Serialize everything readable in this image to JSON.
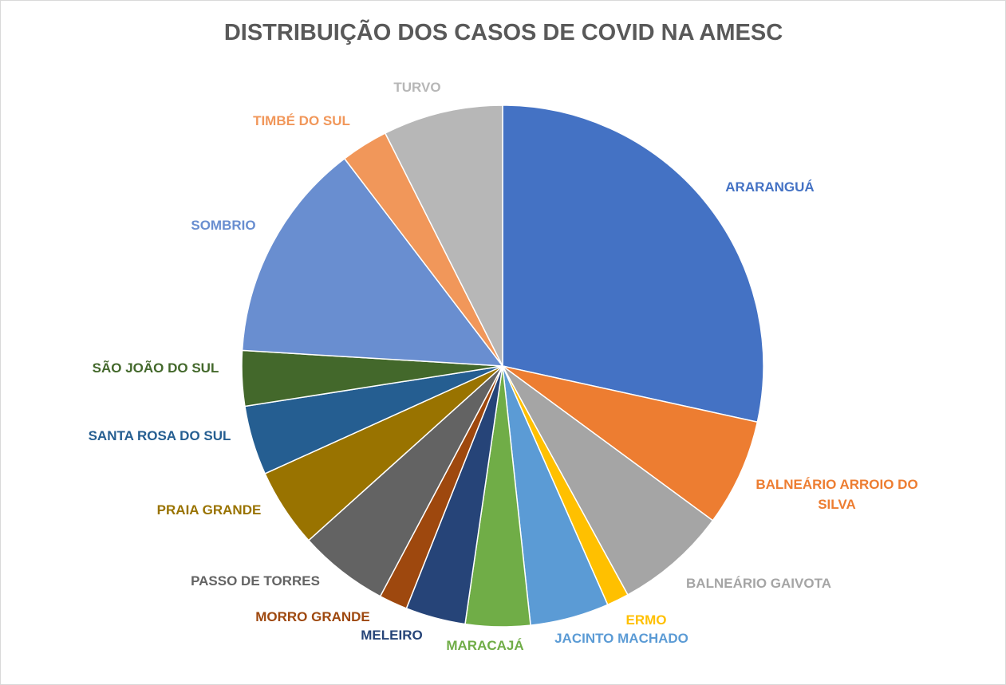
{
  "chart_data": {
    "type": "pie",
    "title": "DISTRIBUIÇÃO DOS CASOS DE COVID NA AMESC",
    "legend": "none",
    "units": "percent of total cases (estimated)",
    "slices": [
      {
        "label": "ARARANGUÁ",
        "label_lines": [
          "ARARANGUÁ"
        ],
        "value": 29.1,
        "color": "#4472C4"
      },
      {
        "label": "BALNEÁRIO ARROIO DO SILVA",
        "label_lines": [
          "BALNEÁRIO ARROIO DO",
          "SILVA"
        ],
        "value": 6.8,
        "color": "#ED7D31"
      },
      {
        "label": "BALNEÁRIO GAIVOTA",
        "label_lines": [
          "BALNEÁRIO GAIVOTA"
        ],
        "value": 7.1,
        "color": "#A5A5A5"
      },
      {
        "label": "ERMO",
        "label_lines": [
          "ERMO"
        ],
        "value": 1.4,
        "color": "#FFC000"
      },
      {
        "label": "JACINTO MACHADO",
        "label_lines": [
          "JACINTO MACHADO"
        ],
        "value": 5.0,
        "color": "#5B9BD5"
      },
      {
        "label": "MARACAJÁ",
        "label_lines": [
          "MARACAJÁ"
        ],
        "value": 4.1,
        "color": "#70AD47"
      },
      {
        "label": "MELEIRO",
        "label_lines": [
          "MELEIRO"
        ],
        "value": 3.8,
        "color": "#264478"
      },
      {
        "label": "MORRO GRANDE",
        "label_lines": [
          "MORRO GRANDE"
        ],
        "value": 1.8,
        "color": "#9E480E"
      },
      {
        "label": "PASSO DE TORRES",
        "label_lines": [
          "PASSO DE TORRES"
        ],
        "value": 5.7,
        "color": "#636363"
      },
      {
        "label": "PRAIA GRANDE",
        "label_lines": [
          "PRAIA GRANDE"
        ],
        "value": 5.0,
        "color": "#997300"
      },
      {
        "label": "SANTA ROSA DO SUL",
        "label_lines": [
          "SANTA ROSA DO SUL"
        ],
        "value": 4.4,
        "color": "#255E91"
      },
      {
        "label": "SÃO JOÃO DO SUL",
        "label_lines": [
          "SÃO JOÃO DO SUL"
        ],
        "value": 3.5,
        "color": "#43682B"
      },
      {
        "label": "SOMBRIO",
        "label_lines": [
          "SOMBRIO"
        ],
        "value": 14.0,
        "color": "#698ED0"
      },
      {
        "label": "TIMBÉ DO SUL",
        "label_lines": [
          "TIMBÉ DO SUL"
        ],
        "value": 3.0,
        "color": "#F1975A"
      },
      {
        "label": "TURVO",
        "label_lines": [
          "TURVO"
        ],
        "value": 7.6,
        "color": "#B7B7B7"
      }
    ]
  }
}
